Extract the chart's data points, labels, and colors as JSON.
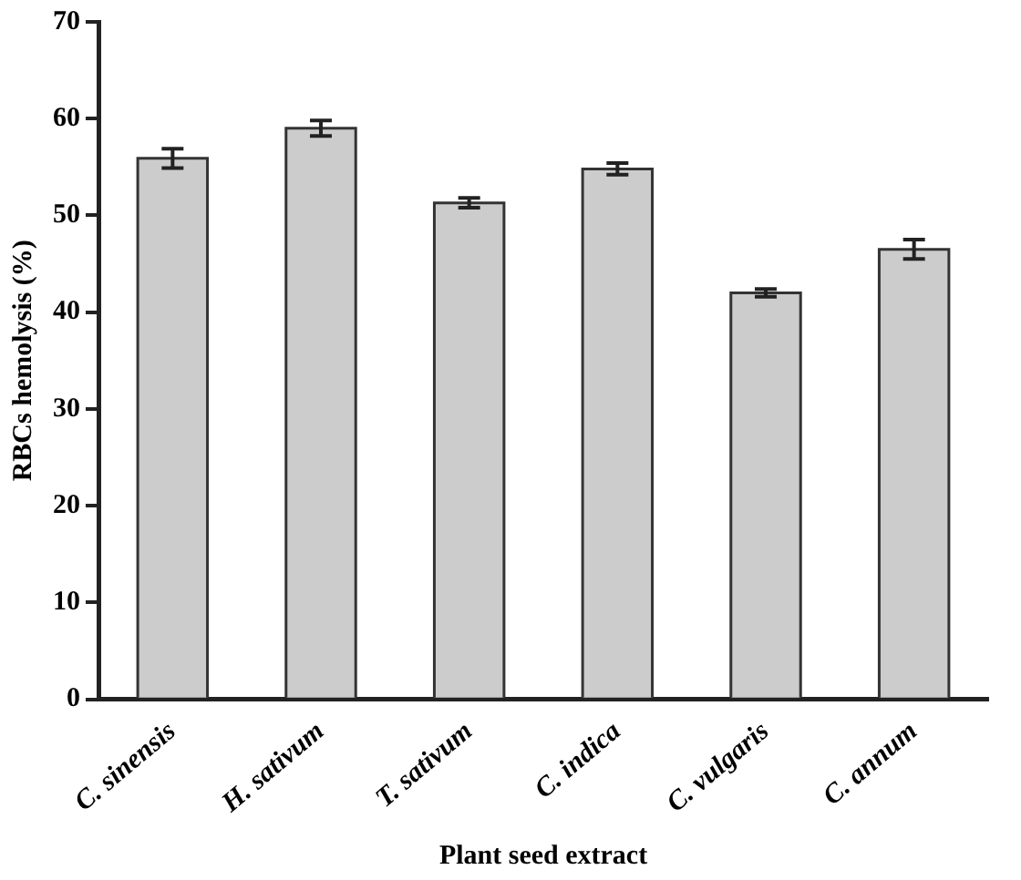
{
  "chart_data": {
    "type": "bar",
    "xlabel": "Plant seed extract",
    "ylabel": "RBCs hemolysis (%)",
    "categories": [
      "C. sinensis",
      "H. sativum",
      "T. sativum",
      "C. indica",
      "C. vulgaris",
      "C. annum"
    ],
    "values": [
      55.9,
      59,
      51.3,
      54.8,
      42,
      46.5
    ],
    "errors": [
      1,
      0.8,
      0.5,
      0.6,
      0.4,
      1
    ],
    "color": "#cccccc",
    "ylim": [
      0,
      70
    ],
    "yticks": [
      0,
      10,
      20,
      30,
      40,
      50,
      60,
      70
    ],
    "grid": false
  }
}
